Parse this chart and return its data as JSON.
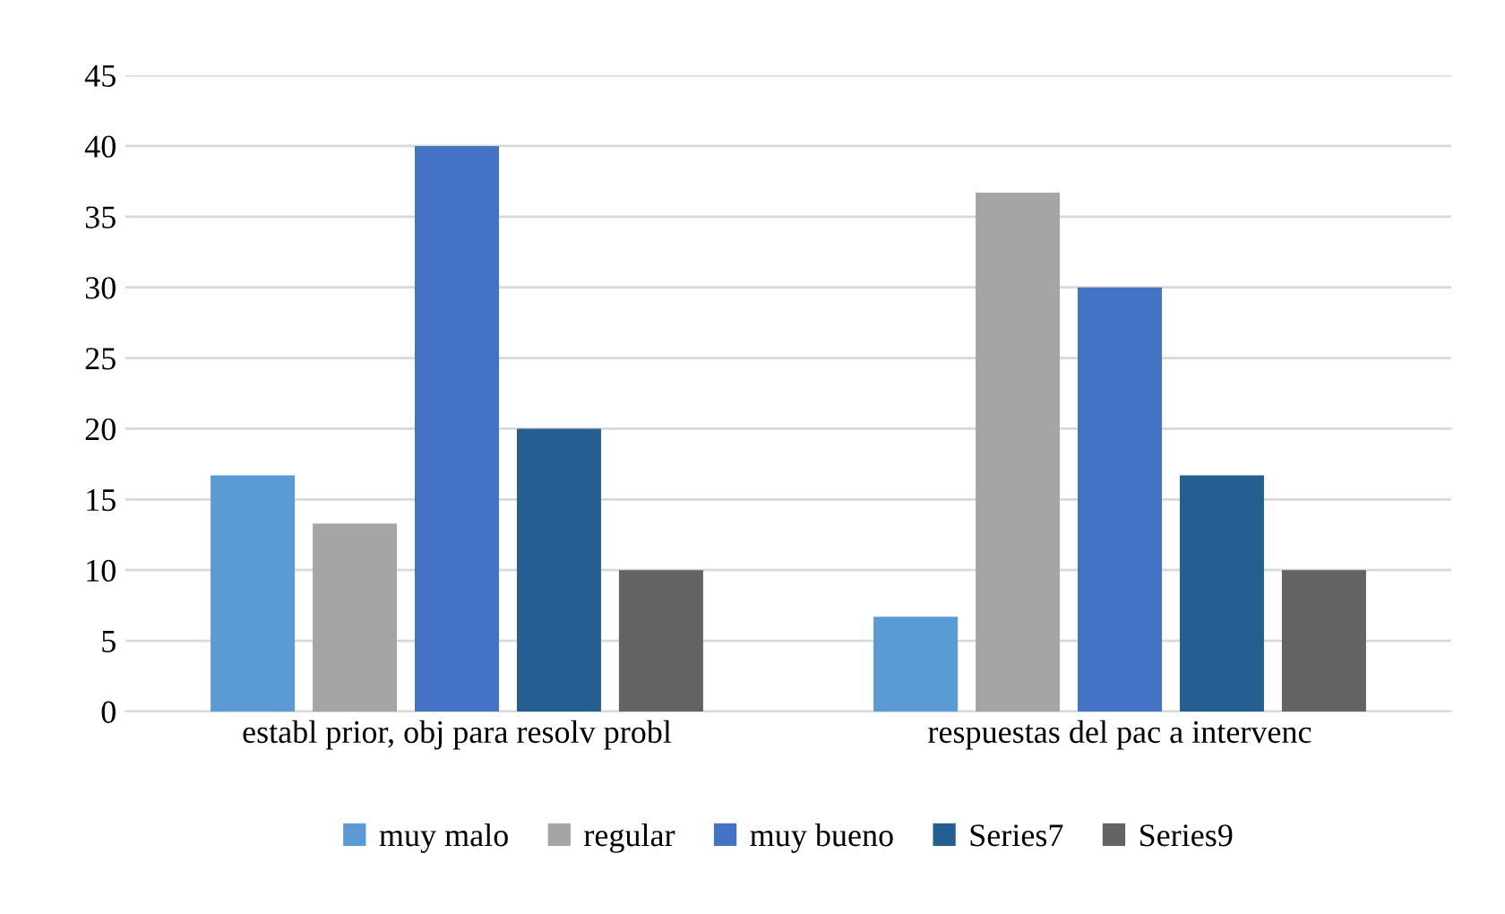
{
  "chart_data": {
    "type": "bar",
    "categories": [
      "establ prior, obj para resolv probl",
      "respuestas del pac a intervenc"
    ],
    "series": [
      {
        "name": "muy malo",
        "color": "#5b9bd5",
        "values": [
          16.7,
          6.7
        ]
      },
      {
        "name": "regular",
        "color": "#a5a5a5",
        "values": [
          13.3,
          36.7
        ]
      },
      {
        "name": "muy bueno",
        "color": "#4472c4",
        "values": [
          40,
          30
        ]
      },
      {
        "name": "Series7",
        "color": "#255e91",
        "values": [
          20,
          16.7
        ]
      },
      {
        "name": "Series9",
        "color": "#636363",
        "values": [
          10,
          10
        ]
      }
    ],
    "ylim": [
      0,
      45
    ],
    "yticks": [
      0,
      5,
      10,
      15,
      20,
      25,
      30,
      35,
      40,
      45
    ],
    "grid": "y",
    "legend": "bottom"
  }
}
